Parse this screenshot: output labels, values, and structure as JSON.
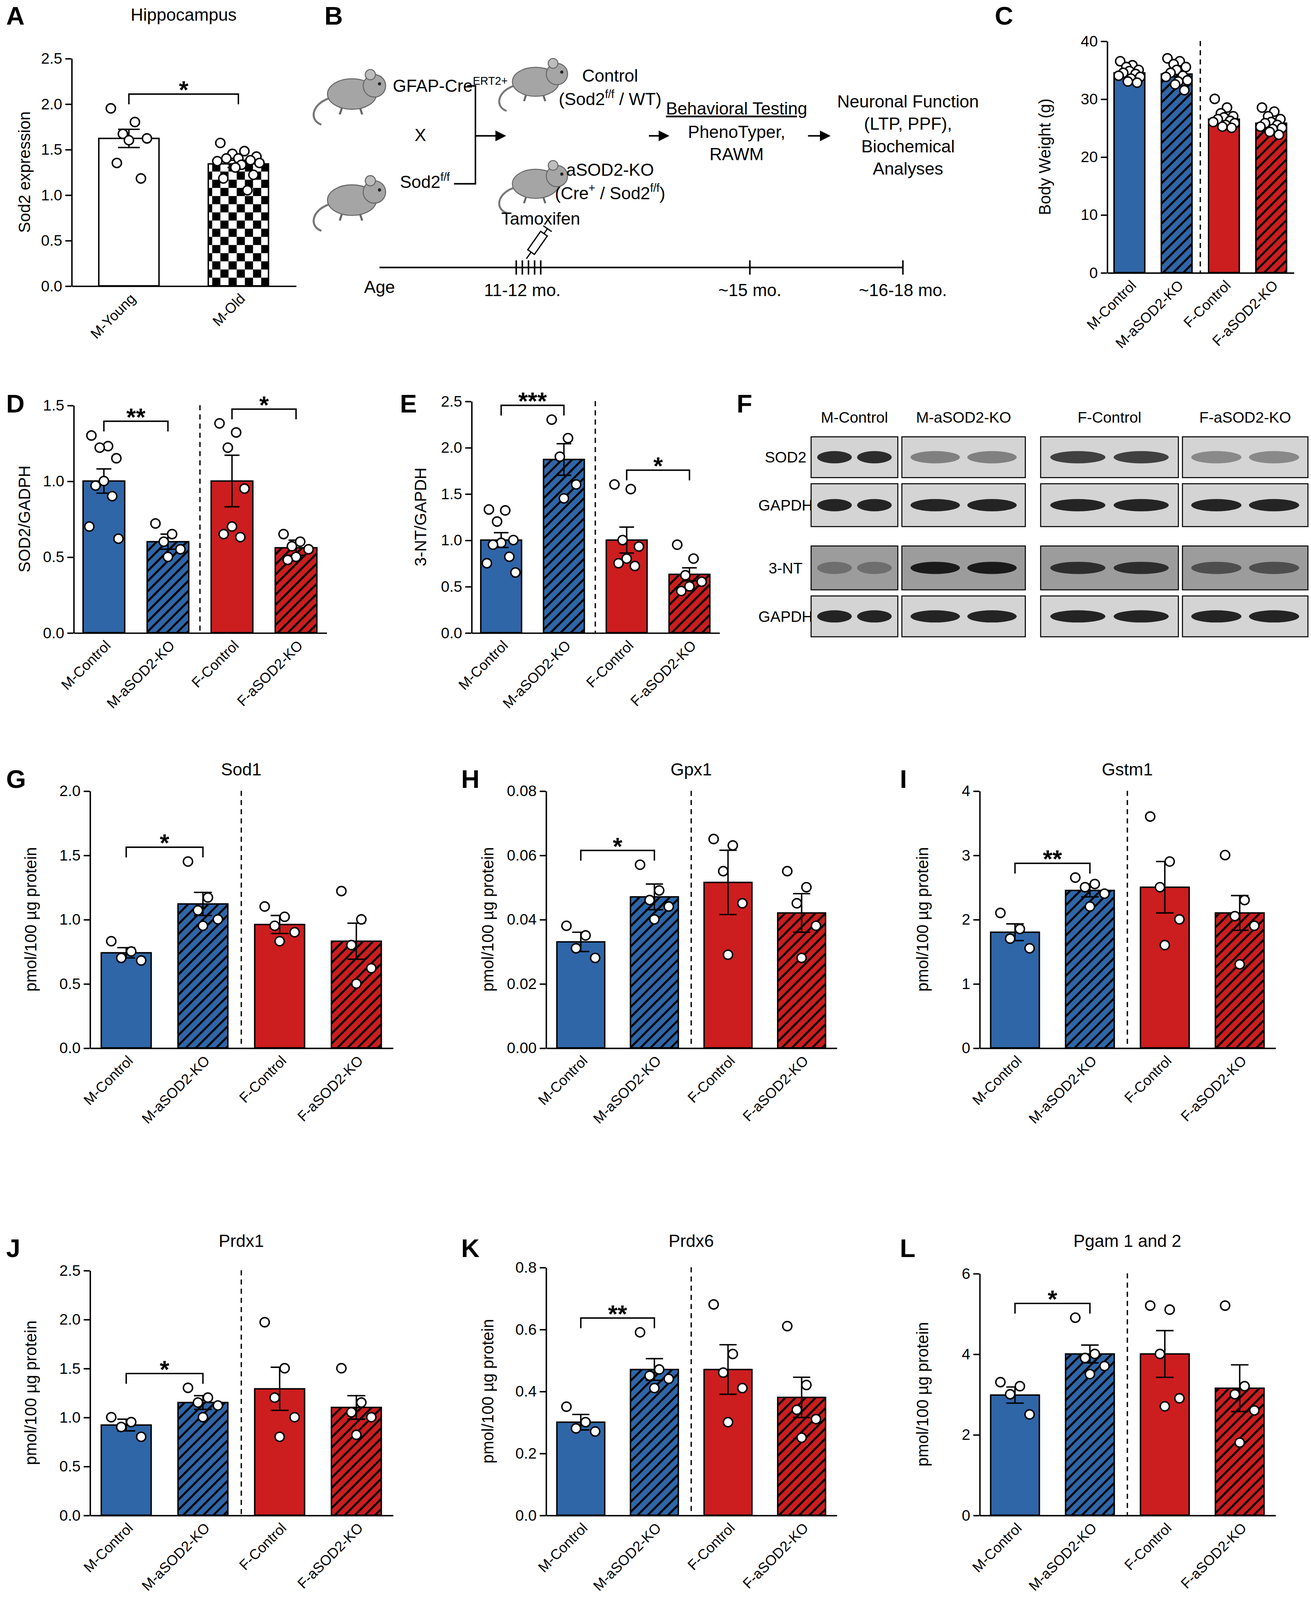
{
  "chart_data": [
    {
      "panel": "A",
      "type": "bar",
      "title": "Hippocampus",
      "y_label": "Sod2 expression",
      "categories": [
        "M-Young",
        "M-Old"
      ],
      "values": [
        1.62,
        1.34
      ],
      "errors": [
        0.1,
        0.04
      ],
      "points": [
        [
          1.95,
          1.8,
          1.67,
          1.62,
          1.6,
          1.35,
          1.18
        ],
        [
          1.57,
          1.48,
          1.45,
          1.42,
          1.4,
          1.4,
          1.38,
          1.37,
          1.35,
          1.33,
          1.3,
          1.22,
          1.18,
          1.05
        ]
      ],
      "colors": [
        "#ffffff",
        "#ffffff"
      ],
      "ylim": [
        0,
        2.5
      ],
      "yticks": [
        {
          "value": 0,
          "label": "0.0"
        },
        {
          "value": 0.5,
          "label": "0.5"
        },
        {
          "value": 1,
          "label": "1.0"
        },
        {
          "value": 1.5,
          "label": "1.5"
        },
        {
          "value": 2,
          "label": "2.0"
        },
        {
          "value": 2.5,
          "label": "2.5"
        }
      ],
      "annotations": [
        {
          "text": "*",
          "from": "M-Young",
          "to": "M-Old"
        }
      ]
    },
    {
      "panel": "C",
      "type": "bar",
      "y_label": "Body Weight (g)",
      "categories": [
        "M-Control",
        "M-aSOD2-KO",
        "F-Control",
        "F-aSOD2-KO"
      ],
      "values": [
        34.5,
        34.3,
        26.5,
        25.8
      ],
      "errors": [
        0.35,
        0.45,
        0.4,
        0.4
      ],
      "points": [
        [
          36.5,
          35.8,
          35.5,
          35.0,
          34.8,
          34.5,
          34.3,
          34.0,
          33.8,
          33.5,
          33.0,
          32.8
        ],
        [
          37.0,
          36.5,
          36.0,
          35.5,
          35.0,
          34.5,
          34.0,
          33.8,
          33.2,
          33.0,
          32.5,
          31.5
        ],
        [
          30.0,
          28.5,
          27.5,
          27.0,
          26.8,
          26.5,
          26.2,
          26.0,
          25.8,
          25.5,
          25.2,
          25.0
        ],
        [
          28.5,
          27.8,
          27.0,
          26.5,
          26.0,
          25.8,
          25.5,
          25.2,
          25.0,
          24.8,
          24.3,
          23.8
        ]
      ],
      "colors": [
        "#2f66a8",
        "#2f66a8",
        "#cc1d1f",
        "#cc1d1f"
      ],
      "ylim": [
        0,
        40
      ],
      "yticks": [
        0,
        10,
        20,
        30,
        40
      ],
      "annotations": []
    },
    {
      "panel": "D",
      "type": "bar",
      "y_label": "SOD2/GADPH",
      "categories": [
        "M-Control",
        "M-aSOD2-KO",
        "F-Control",
        "F-aSOD2-KO"
      ],
      "values": [
        1.0,
        0.6,
        1.0,
        0.56
      ],
      "errors": [
        0.08,
        0.05,
        0.17,
        0.05
      ],
      "points": [
        [
          1.3,
          1.23,
          1.22,
          1.15,
          1.0,
          0.97,
          0.9,
          0.7,
          0.62
        ],
        [
          0.72,
          0.65,
          0.6,
          0.55,
          0.5
        ],
        [
          1.38,
          1.32,
          1.22,
          0.95,
          0.7,
          0.65,
          0.63
        ],
        [
          0.65,
          0.6,
          0.57,
          0.55,
          0.5,
          0.48
        ]
      ],
      "colors": [
        "#2f66a8",
        "#2f66a8",
        "#cc1d1f",
        "#cc1d1f"
      ],
      "ylim": [
        0,
        1.5
      ],
      "yticks": [
        {
          "value": 0,
          "label": "0.0"
        },
        {
          "value": 0.5,
          "label": "0.5"
        },
        {
          "value": 1,
          "label": "1.0"
        },
        {
          "value": 1.5,
          "label": "1.5"
        }
      ],
      "annotations": [
        {
          "text": "**",
          "from": "M-Control",
          "to": "M-aSOD2-KO"
        },
        {
          "text": "*",
          "from": "F-Control",
          "to": "F-aSOD2-KO"
        }
      ]
    },
    {
      "panel": "E",
      "type": "bar",
      "y_label": "3-NT/GAPDH",
      "categories": [
        "M-Control",
        "M-aSOD2-KO",
        "F-Control",
        "F-aSOD2-KO"
      ],
      "values": [
        1.0,
        1.87,
        1.0,
        0.63
      ],
      "errors": [
        0.08,
        0.17,
        0.14,
        0.07
      ],
      "points": [
        [
          1.33,
          1.32,
          1.2,
          1.0,
          0.97,
          0.95,
          0.82,
          0.75,
          0.65
        ],
        [
          2.3,
          2.1,
          1.9,
          1.6,
          1.45
        ],
        [
          1.6,
          1.55,
          1.0,
          0.93,
          0.8,
          0.75,
          0.72
        ],
        [
          0.95,
          0.8,
          0.62,
          0.55,
          0.5,
          0.45
        ]
      ],
      "colors": [
        "#2f66a8",
        "#2f66a8",
        "#cc1d1f",
        "#cc1d1f"
      ],
      "ylim": [
        0,
        2.5
      ],
      "yticks": [
        {
          "value": 0,
          "label": "0.0"
        },
        {
          "value": 0.5,
          "label": "0.5"
        },
        {
          "value": 1,
          "label": "1.0"
        },
        {
          "value": 1.5,
          "label": "1.5"
        },
        {
          "value": 2,
          "label": "2.0"
        },
        {
          "value": 2.5,
          "label": "2.5"
        }
      ],
      "annotations": [
        {
          "text": "***",
          "from": "M-Control",
          "to": "M-aSOD2-KO"
        },
        {
          "text": "*",
          "from": "F-Control",
          "to": "F-aSOD2-KO"
        }
      ]
    },
    {
      "panel": "G",
      "type": "bar",
      "title": "Sod1",
      "y_label": "pmol/100 µg protein",
      "categories": [
        "M-Control",
        "M-aSOD2-KO",
        "F-Control",
        "F-aSOD2-KO"
      ],
      "values": [
        0.74,
        1.12,
        0.96,
        0.83
      ],
      "errors": [
        0.04,
        0.09,
        0.07,
        0.14
      ],
      "points": [
        [
          0.83,
          0.75,
          0.7,
          0.68
        ],
        [
          1.45,
          1.17,
          1.07,
          1.0,
          0.95
        ],
        [
          1.1,
          1.02,
          0.95,
          0.9,
          0.83
        ],
        [
          1.22,
          1.0,
          0.8,
          0.62,
          0.5
        ]
      ],
      "colors": [
        "#2f66a8",
        "#2f66a8",
        "#cc1d1f",
        "#cc1d1f"
      ],
      "ylim": [
        0,
        2
      ],
      "yticks": [
        {
          "value": 0,
          "label": "0.0"
        },
        {
          "value": 0.5,
          "label": "0.5"
        },
        {
          "value": 1,
          "label": "1.0"
        },
        {
          "value": 1.5,
          "label": "1.5"
        },
        {
          "value": 2,
          "label": "2.0"
        }
      ],
      "annotations": [
        {
          "text": "*",
          "from": "M-Control",
          "to": "M-aSOD2-KO"
        }
      ]
    },
    {
      "panel": "H",
      "type": "bar",
      "title": "Gpx1",
      "y_label": "pmol/100 µg protein",
      "categories": [
        "M-Control",
        "M-aSOD2-KO",
        "F-Control",
        "F-aSOD2-KO"
      ],
      "values": [
        0.033,
        0.047,
        0.0515,
        0.042
      ],
      "errors": [
        0.003,
        0.004,
        0.01,
        0.006
      ],
      "points": [
        [
          0.038,
          0.035,
          0.031,
          0.028
        ],
        [
          0.057,
          0.049,
          0.046,
          0.044,
          0.04
        ],
        [
          0.065,
          0.063,
          0.055,
          0.045,
          0.029
        ],
        [
          0.055,
          0.05,
          0.045,
          0.038,
          0.028
        ]
      ],
      "colors": [
        "#2f66a8",
        "#2f66a8",
        "#cc1d1f",
        "#cc1d1f"
      ],
      "ylim": [
        0,
        0.08
      ],
      "yticks": [
        {
          "value": 0,
          "label": "0.00"
        },
        {
          "value": 0.02,
          "label": "0.02"
        },
        {
          "value": 0.04,
          "label": "0.04"
        },
        {
          "value": 0.06,
          "label": "0.06"
        },
        {
          "value": 0.08,
          "label": "0.08"
        }
      ],
      "annotations": [
        {
          "text": "*",
          "from": "M-Control",
          "to": "M-aSOD2-KO"
        }
      ]
    },
    {
      "panel": "I",
      "type": "bar",
      "title": "Gstm1",
      "y_label": "pmol/100 µg protein",
      "categories": [
        "M-Control",
        "M-aSOD2-KO",
        "F-Control",
        "F-aSOD2-KO"
      ],
      "values": [
        1.8,
        2.45,
        2.5,
        2.1
      ],
      "errors": [
        0.13,
        0.1,
        0.4,
        0.27
      ],
      "points": [
        [
          2.1,
          1.85,
          1.7,
          1.55
        ],
        [
          2.65,
          2.55,
          2.5,
          2.4,
          2.2
        ],
        [
          3.6,
          2.9,
          2.5,
          2.0,
          1.6
        ],
        [
          3.0,
          2.3,
          2.05,
          1.9,
          1.3
        ]
      ],
      "colors": [
        "#2f66a8",
        "#2f66a8",
        "#cc1d1f",
        "#cc1d1f"
      ],
      "ylim": [
        0,
        4
      ],
      "yticks": [
        0,
        1,
        2,
        3,
        4
      ],
      "annotations": [
        {
          "text": "**",
          "from": "M-Control",
          "to": "M-aSOD2-KO"
        }
      ]
    },
    {
      "panel": "J",
      "type": "bar",
      "title": "Prdx1",
      "y_label": "pmol/100 µg protein",
      "categories": [
        "M-Control",
        "M-aSOD2-KO",
        "F-Control",
        "F-aSOD2-KO"
      ],
      "values": [
        0.92,
        1.15,
        1.29,
        1.1
      ],
      "errors": [
        0.06,
        0.07,
        0.22,
        0.12
      ],
      "points": [
        [
          1.0,
          0.95,
          0.9,
          0.8
        ],
        [
          1.3,
          1.2,
          1.15,
          1.12,
          1.0
        ],
        [
          1.97,
          1.5,
          1.2,
          1.0,
          0.8
        ],
        [
          1.5,
          1.15,
          1.05,
          1.0,
          0.82
        ]
      ],
      "colors": [
        "#2f66a8",
        "#2f66a8",
        "#cc1d1f",
        "#cc1d1f"
      ],
      "ylim": [
        0,
        2.5
      ],
      "yticks": [
        {
          "value": 0,
          "label": "0.0"
        },
        {
          "value": 0.5,
          "label": "0.5"
        },
        {
          "value": 1,
          "label": "1.0"
        },
        {
          "value": 1.5,
          "label": "1.5"
        },
        {
          "value": 2,
          "label": "2.0"
        },
        {
          "value": 2.5,
          "label": "2.5"
        }
      ],
      "annotations": [
        {
          "text": "*",
          "from": "M-Control",
          "to": "M-aSOD2-KO"
        }
      ]
    },
    {
      "panel": "K",
      "type": "bar",
      "title": "Prdx6",
      "y_label": "pmol/100 µg protein",
      "categories": [
        "M-Control",
        "M-aSOD2-KO",
        "F-Control",
        "F-aSOD2-KO"
      ],
      "values": [
        0.3,
        0.47,
        0.47,
        0.38
      ],
      "errors": [
        0.025,
        0.035,
        0.08,
        0.065
      ],
      "points": [
        [
          0.35,
          0.3,
          0.28,
          0.27
        ],
        [
          0.59,
          0.47,
          0.45,
          0.44,
          0.41
        ],
        [
          0.68,
          0.52,
          0.46,
          0.41,
          0.3
        ],
        [
          0.61,
          0.42,
          0.34,
          0.31,
          0.25
        ]
      ],
      "colors": [
        "#2f66a8",
        "#2f66a8",
        "#cc1d1f",
        "#cc1d1f"
      ],
      "ylim": [
        0,
        0.8
      ],
      "yticks": [
        {
          "value": 0,
          "label": "0.0"
        },
        {
          "value": 0.2,
          "label": "0.2"
        },
        {
          "value": 0.4,
          "label": "0.4"
        },
        {
          "value": 0.6,
          "label": "0.6"
        },
        {
          "value": 0.8,
          "label": "0.8"
        }
      ],
      "annotations": [
        {
          "text": "**",
          "from": "M-Control",
          "to": "M-aSOD2-KO"
        }
      ]
    },
    {
      "panel": "L",
      "type": "bar",
      "title": "Pgam 1 and 2",
      "y_label": "pmol/100 µg protein",
      "categories": [
        "M-Control",
        "M-aSOD2-KO",
        "F-Control",
        "F-aSOD2-KO"
      ],
      "values": [
        2.98,
        4.0,
        4.0,
        3.15
      ],
      "errors": [
        0.2,
        0.22,
        0.58,
        0.58
      ],
      "points": [
        [
          3.3,
          3.2,
          3.0,
          2.5
        ],
        [
          4.9,
          4.0,
          3.9,
          3.7,
          3.5
        ],
        [
          5.2,
          5.1,
          4.0,
          2.9,
          2.7
        ],
        [
          5.2,
          3.2,
          3.0,
          2.6,
          1.8
        ]
      ],
      "colors": [
        "#2f66a8",
        "#2f66a8",
        "#cc1d1f",
        "#cc1d1f"
      ],
      "ylim": [
        0,
        6
      ],
      "yticks": [
        0,
        2,
        4,
        6
      ],
      "annotations": [
        {
          "text": "*",
          "from": "M-Control",
          "to": "M-aSOD2-KO"
        }
      ]
    }
  ],
  "diagram": {
    "panel": "B",
    "labels": [
      {
        "runs": [
          {
            "text": "GFAP-Cre"
          },
          {
            "sup": "ERT2+"
          }
        ]
      },
      {
        "runs": [
          {
            "text": "X"
          }
        ]
      },
      {
        "runs": [
          {
            "text": "Sod2"
          },
          {
            "sup": "f/f"
          }
        ]
      },
      {
        "runs": [
          {
            "text": "Control"
          }
        ]
      },
      {
        "runs": [
          {
            "text": "(Sod2"
          },
          {
            "sup": "f/f"
          },
          {
            "text": " / WT)"
          }
        ]
      },
      {
        "runs": [
          {
            "text": "aSOD2-KO"
          }
        ]
      },
      {
        "runs": [
          {
            "text": "(Cre"
          },
          {
            "sup": "+"
          },
          {
            "text": " / Sod2"
          },
          {
            "sup": "f/f"
          },
          {
            "text": ")"
          }
        ]
      },
      {
        "runs": [
          {
            "text": "Tamoxifen"
          }
        ]
      },
      {
        "runs": [
          {
            "text": "Behavioral Testing"
          }
        ]
      },
      {
        "runs": [
          {
            "text": "PhenoTyper,"
          }
        ]
      },
      {
        "runs": [
          {
            "text": "RAWM"
          }
        ]
      },
      {
        "runs": [
          {
            "text": "Neuronal Function"
          }
        ]
      },
      {
        "runs": [
          {
            "text": "(LTP, PPF),"
          }
        ]
      },
      {
        "runs": [
          {
            "text": "Biochemical"
          }
        ]
      },
      {
        "runs": [
          {
            "text": "Analyses"
          }
        ]
      },
      {
        "runs": [
          {
            "text": "Age"
          }
        ]
      },
      {
        "runs": [
          {
            "text": "11-12 mo."
          }
        ]
      },
      {
        "runs": [
          {
            "text": "~15 mo."
          }
        ]
      },
      {
        "runs": [
          {
            "text": "~16-18 mo."
          }
        ]
      }
    ]
  },
  "blot": {
    "panel": "F",
    "columns": [
      "M-Control",
      "M-aSOD2-KO",
      "F-Control",
      "F-aSOD2-KO"
    ],
    "rows": [
      "SOD2",
      "GAPDH",
      "3-NT",
      "GAPDH"
    ]
  }
}
